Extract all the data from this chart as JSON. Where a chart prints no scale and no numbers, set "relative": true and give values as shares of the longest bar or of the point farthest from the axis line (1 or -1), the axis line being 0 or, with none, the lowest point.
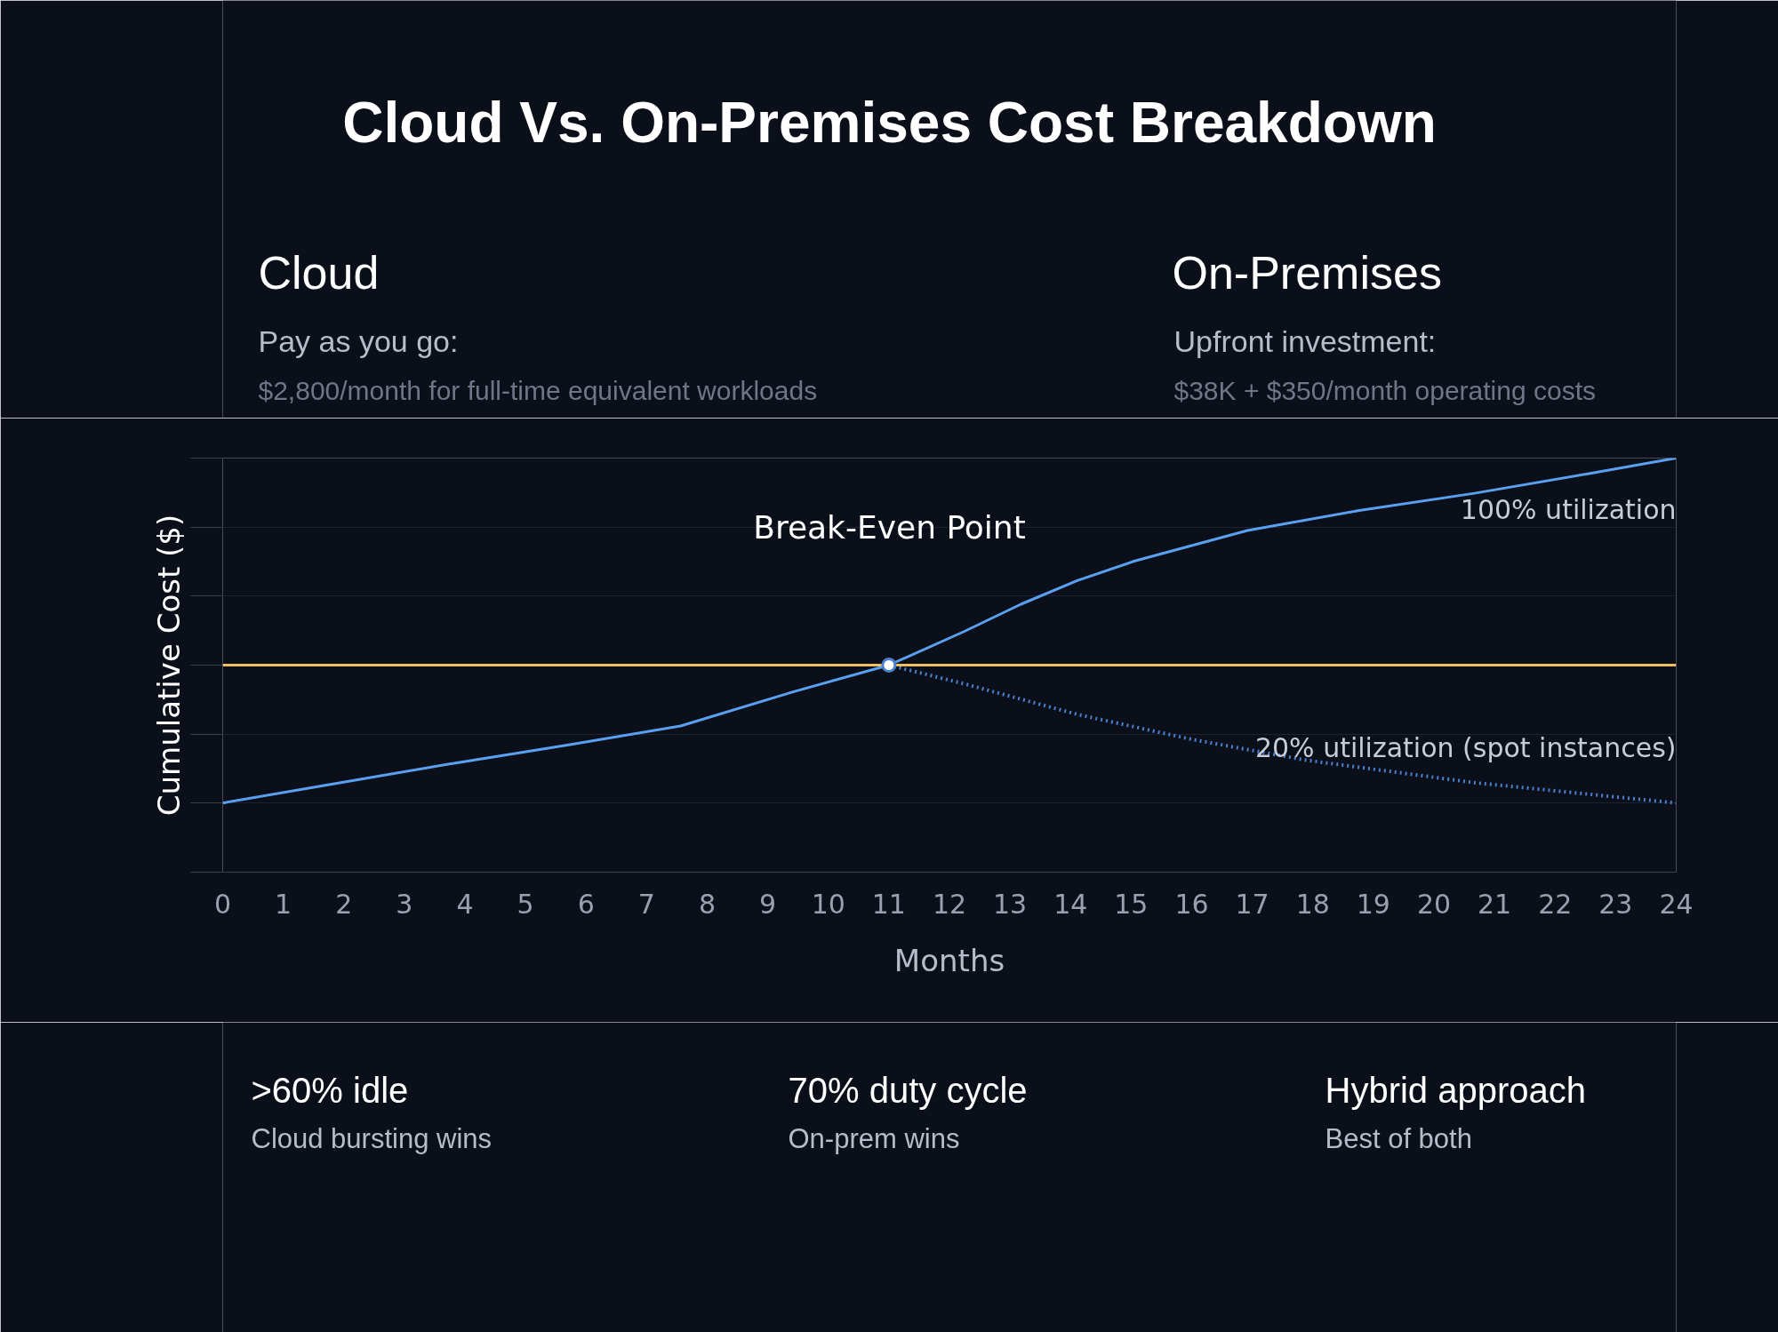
{
  "chart_data": {
    "type": "line",
    "title": "Cloud Vs. On-Premises Cost Breakdown",
    "xlabel": "Months",
    "ylabel": "Cumulative Cost ($)",
    "relative": true,
    "grid": "y",
    "marker": "none",
    "xlim": [
      0,
      24
    ],
    "xticks": [
      0,
      1,
      2,
      3,
      4,
      5,
      6,
      7,
      8,
      9,
      10,
      11,
      12,
      13,
      14,
      15,
      16,
      17,
      18,
      19,
      20,
      21,
      22,
      23,
      24
    ],
    "series": [
      {
        "name": "100% utilization",
        "color": "#5aa0f0",
        "line_style": "solid",
        "x": [
          0,
          1.95,
          3.82,
          5.69,
          7.56,
          9.43,
          11,
          12.24,
          13.18,
          14.11,
          15.05,
          16.92,
          18.79,
          20.67,
          22.54,
          24
        ],
        "values": [
          0.167,
          0.216,
          0.263,
          0.307,
          0.353,
          0.436,
          0.5,
          0.581,
          0.647,
          0.704,
          0.751,
          0.825,
          0.874,
          0.915,
          0.962,
          1.0
        ]
      },
      {
        "name": "20% utilization (spot instances)",
        "color": "#4a7fd0",
        "line_style": "dotted",
        "x": [
          11,
          12.24,
          14.11,
          15.99,
          17.86,
          20.67,
          24
        ],
        "values": [
          0.5,
          0.455,
          0.381,
          0.321,
          0.271,
          0.216,
          0.167
        ]
      },
      {
        "color": "#f0c060",
        "line_style": "solid",
        "x": [
          0,
          24
        ],
        "values": [
          0.5,
          0.5
        ]
      }
    ],
    "annotations": [
      "Cloud",
      "Pay as you go:",
      "$2,800/month for full-time equivalent workloads",
      "On-Premises",
      "Upfront investment:",
      "$38K + $350/month operating costs",
      ">60% idle",
      "Cloud bursting wins",
      "70% duty cycle",
      "On-prem wins",
      "Hybrid approach",
      "Best of both",
      "Break-Even Point"
    ]
  }
}
